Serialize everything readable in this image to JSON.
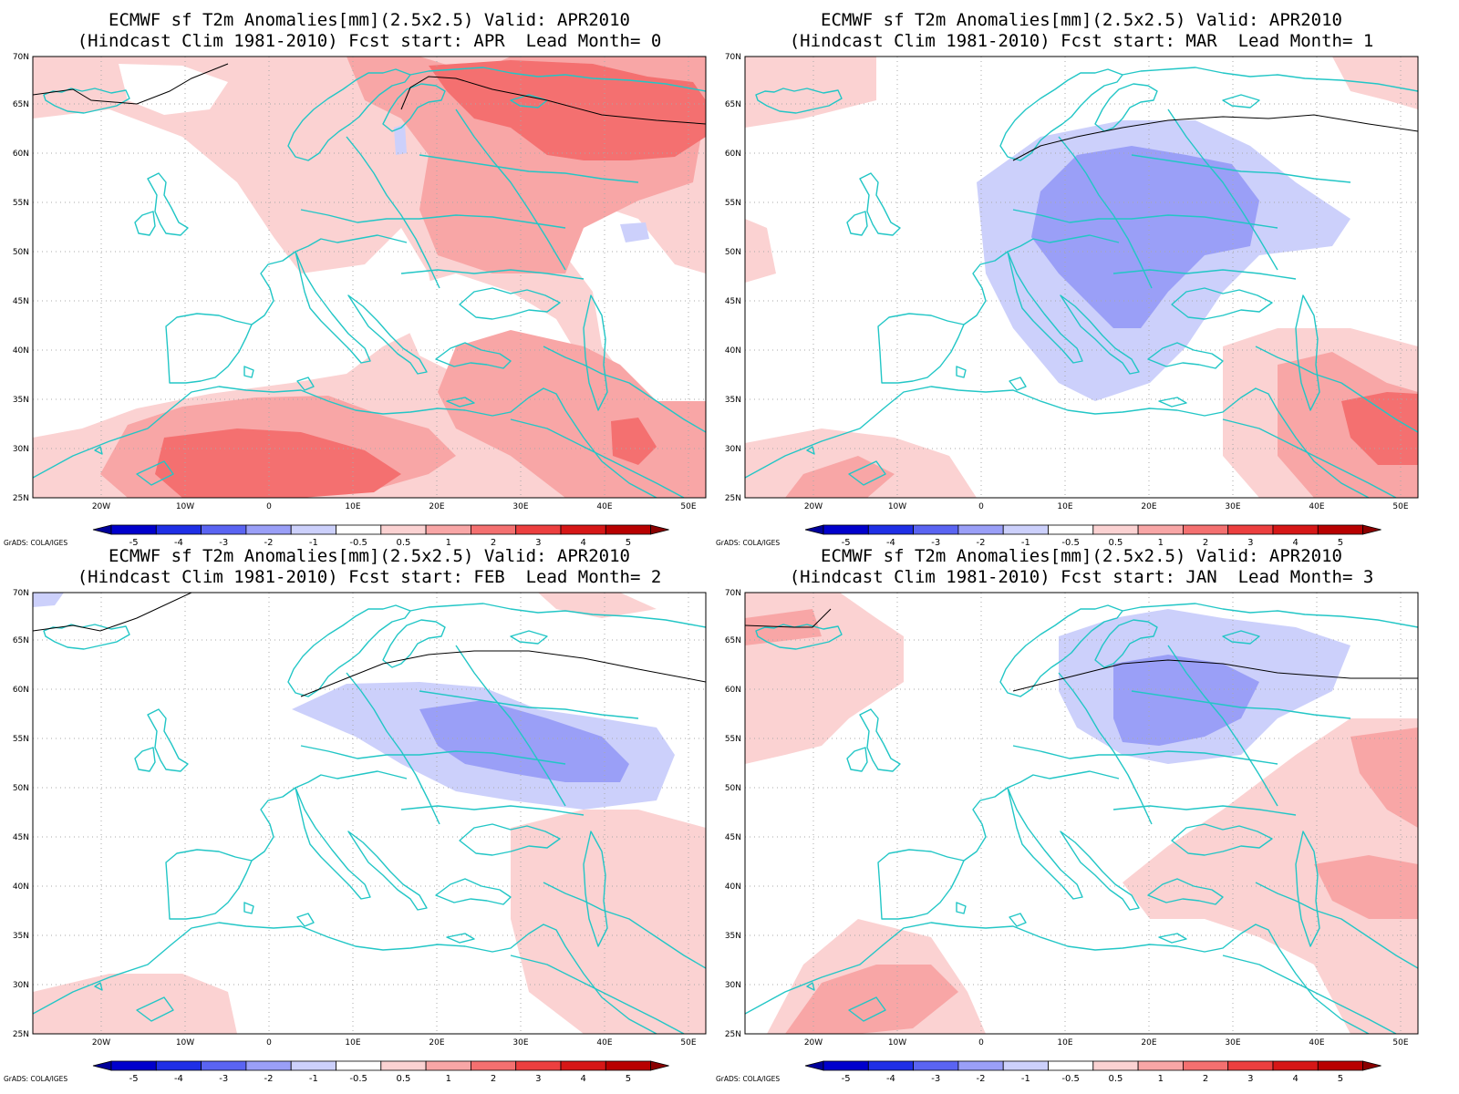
{
  "credit": "GrADS: COLA/IGES",
  "colorbar": {
    "labels": [
      "-5",
      "-4",
      "-3",
      "-2",
      "-1",
      "-0.5",
      "0.5",
      "1",
      "2",
      "3",
      "4",
      "5"
    ],
    "colors": [
      "#0000cc",
      "#1f2fe6",
      "#5a64f2",
      "#9a9ff7",
      "#ccd0fb",
      "#ffffff",
      "#fbd2d2",
      "#f8a6a6",
      "#f47070",
      "#ec3f3f",
      "#d61717",
      "#b80000"
    ],
    "low_end_color": "#00009a",
    "high_end_color": "#8a0000"
  },
  "map_axes": {
    "lon_labels": [
      "20W",
      "10W",
      "0",
      "10E",
      "20E",
      "30E",
      "40E",
      "50E"
    ],
    "lat_labels": [
      "25N",
      "30N",
      "35N",
      "40N",
      "45N",
      "50N",
      "55N",
      "60N",
      "65N",
      "70N"
    ]
  },
  "panels": [
    {
      "title_line1": "ECMWF sf T2m Anomalies[mm](2.5x2.5) Valid: APR2010",
      "title_line2": "(Hindcast Clim 1981-2010) Fcst start: APR  Lead Month= 0",
      "fcst_start": "APR",
      "lead_month": 0,
      "dominant_anomaly": "warm"
    },
    {
      "title_line1": "ECMWF sf T2m Anomalies[mm](2.5x2.5) Valid: APR2010",
      "title_line2": "(Hindcast Clim 1981-2010) Fcst start: MAR  Lead Month= 1",
      "fcst_start": "MAR",
      "lead_month": 1,
      "dominant_anomaly": "cold over central/eastern Europe"
    },
    {
      "title_line1": "ECMWF sf T2m Anomalies[mm](2.5x2.5) Valid: APR2010",
      "title_line2": "(Hindcast Clim 1981-2010) Fcst start: FEB  Lead Month= 2",
      "fcst_start": "FEB",
      "lead_month": 2,
      "dominant_anomaly": "cold over eastern Europe"
    },
    {
      "title_line1": "ECMWF sf T2m Anomalies[mm](2.5x2.5) Valid: APR2010",
      "title_line2": "(Hindcast Clim 1981-2010) Fcst start: JAN  Lead Month= 3",
      "fcst_start": "JAN",
      "lead_month": 3,
      "dominant_anomaly": "cold over eastern Europe"
    }
  ]
}
